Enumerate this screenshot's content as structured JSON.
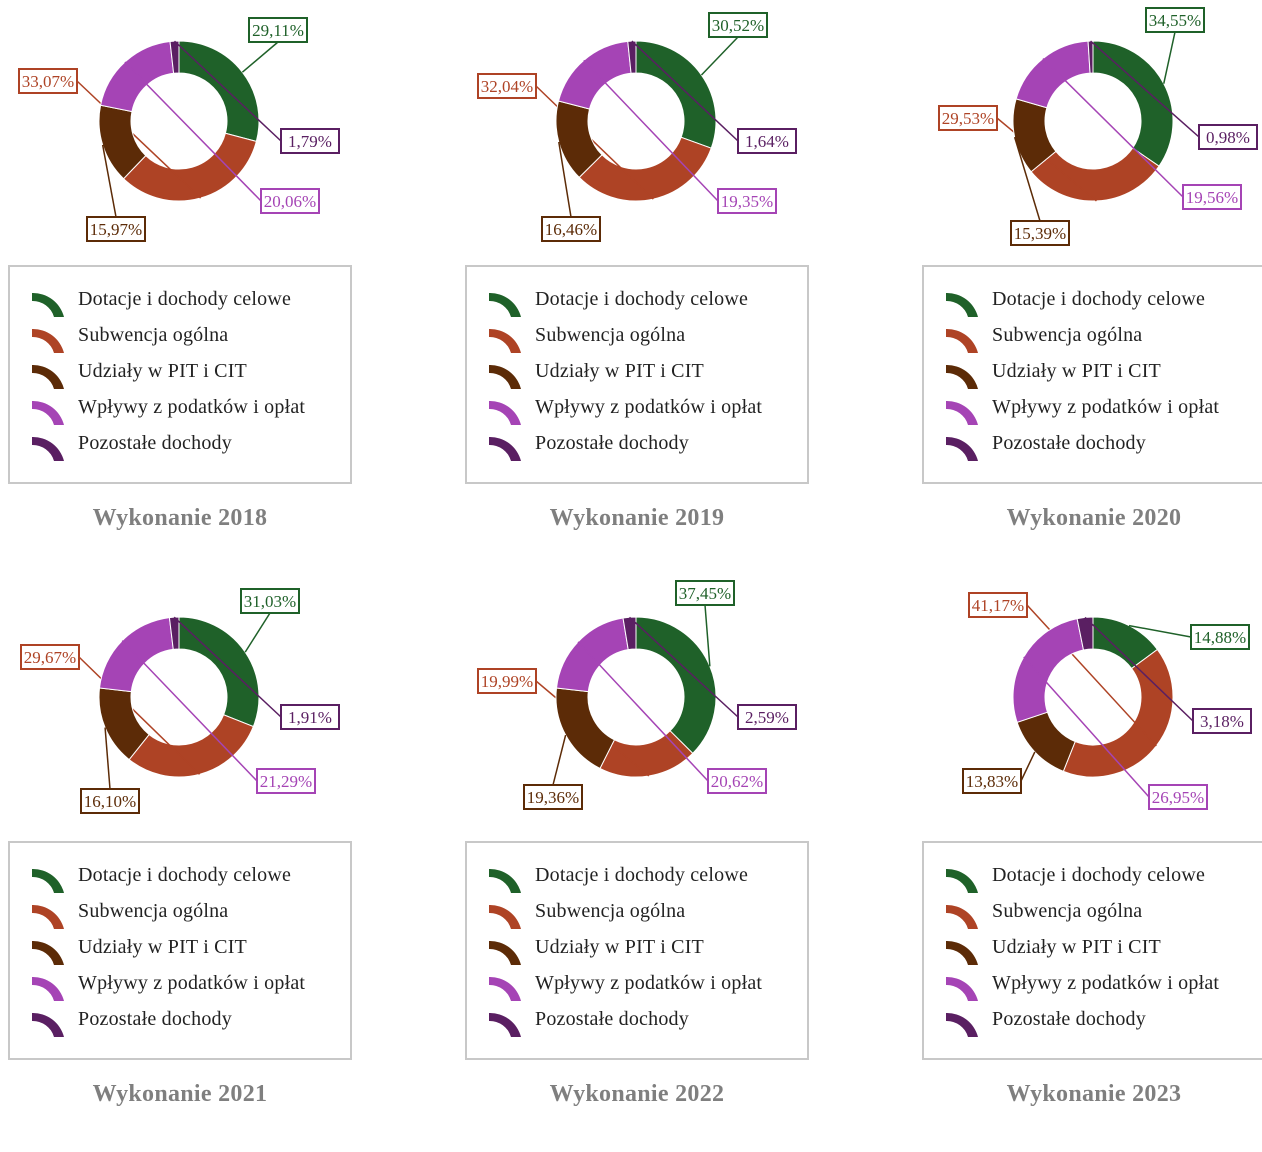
{
  "colors": {
    "dotacje": "#1f6129",
    "subwencja": "#ae4325",
    "udzialy": "#5c2b07",
    "wplywy": "#a544b5",
    "pozostale": "#5a1f62",
    "legend_border": "#c8c8c8",
    "title": "#7f7f7f"
  },
  "chart_data": [
    {
      "type": "pie",
      "title": "Wykonanie 2018",
      "categories": [
        "Dotacje i dochody celowe",
        "Subwencja ogólna",
        "Udziały w PIT i CIT",
        "Wpływy z podatków i opłat",
        "Pozostałe dochody"
      ],
      "values": [
        29.11,
        33.07,
        15.97,
        20.06,
        1.79
      ],
      "labels": [
        "29,11%",
        "33,07%",
        "15,97%",
        "20,06%",
        "1,79%"
      ],
      "legend": "bottom"
    },
    {
      "type": "pie",
      "title": "Wykonanie 2019",
      "categories": [
        "Dotacje i dochody celowe",
        "Subwencja ogólna",
        "Udziały w PIT i CIT",
        "Wpływy z podatków i opłat",
        "Pozostałe dochody"
      ],
      "values": [
        30.52,
        32.04,
        16.46,
        19.35,
        1.64
      ],
      "labels": [
        "30,52%",
        "32,04%",
        "16,46%",
        "19,35%",
        "1,64%"
      ],
      "legend": "bottom"
    },
    {
      "type": "pie",
      "title": "Wykonanie 2020",
      "categories": [
        "Dotacje i dochody celowe",
        "Subwencja ogólna",
        "Udziały w PIT i CIT",
        "Wpływy z podatków i opłat",
        "Pozostałe dochody"
      ],
      "values": [
        34.55,
        29.53,
        15.39,
        19.56,
        0.98
      ],
      "labels": [
        "34,55%",
        "29,53%",
        "15,39%",
        "19,56%",
        "0,98%"
      ],
      "legend": "bottom"
    },
    {
      "type": "pie",
      "title": "Wykonanie 2021",
      "categories": [
        "Dotacje i dochody celowe",
        "Subwencja ogólna",
        "Udziały w PIT i CIT",
        "Wpływy z podatków i opłat",
        "Pozostałe dochody"
      ],
      "values": [
        31.03,
        29.67,
        16.1,
        21.29,
        1.91
      ],
      "labels": [
        "31,03%",
        "29,67%",
        "16,10%",
        "21,29%",
        "1,91%"
      ],
      "legend": "bottom"
    },
    {
      "type": "pie",
      "title": "Wykonanie 2022",
      "categories": [
        "Dotacje i dochody celowe",
        "Subwencja ogólna",
        "Udziały w PIT i CIT",
        "Wpływy z podatków i opłat",
        "Pozostałe dochody"
      ],
      "values": [
        37.45,
        19.99,
        19.36,
        20.62,
        2.59
      ],
      "labels": [
        "37,45%",
        "19,99%",
        "19,36%",
        "20,62%",
        "2,59%"
      ],
      "legend": "bottom"
    },
    {
      "type": "pie",
      "title": "Wykonanie 2023",
      "categories": [
        "Dotacje i dochody celowe",
        "Subwencja ogólna",
        "Udziały w PIT i CIT",
        "Wpływy z podatków i opłat",
        "Pozostałe dochody"
      ],
      "values": [
        14.88,
        41.17,
        13.83,
        26.95,
        3.18
      ],
      "labels": [
        "14,88%",
        "41,17%",
        "13,83%",
        "26,95%",
        "3,18%"
      ],
      "legend": "bottom"
    }
  ]
}
